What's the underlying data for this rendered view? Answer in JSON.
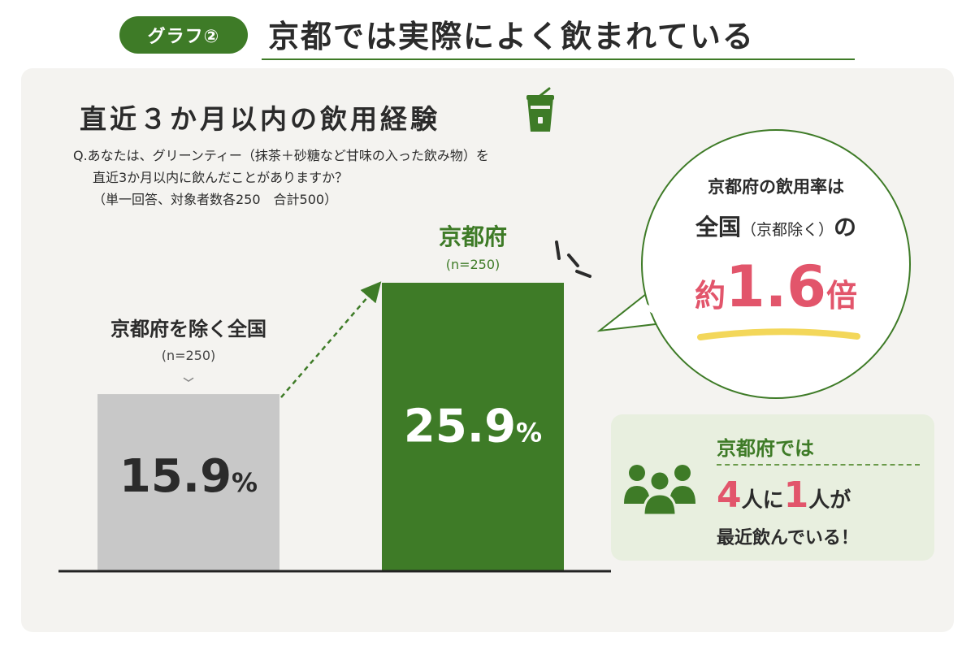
{
  "header": {
    "badge": "グラフ②",
    "title": "京都では実際によく飲まれている"
  },
  "chart_section": {
    "title": "直近３か月以内の飲用経験",
    "question_line1": "Q.あなたは、グリーンティー（抹茶＋砂糖など甘味の入った飲み物）を",
    "question_line2": "直近3か月以内に飲んだことがありますか？",
    "question_line3": "（単一回答、対象者数各250　合計500）",
    "icon": "drink-cup-icon"
  },
  "chart_data": {
    "type": "bar",
    "categories": [
      "京都府を除く全国",
      "京都府"
    ],
    "sample_sizes": [
      "(n=250)",
      "(n=250)"
    ],
    "values": [
      15.9,
      25.9
    ],
    "value_labels": [
      "15.9%",
      "25.9%"
    ],
    "unit": "%",
    "ylim": [
      0,
      30
    ],
    "colors": [
      "#c8c8c8",
      "#3e7b27"
    ],
    "label_colors": [
      "#2b2b2b",
      "#3e7b27"
    ],
    "value_label_colors": [
      "#2b2b2b",
      "#ffffff"
    ],
    "title": "",
    "xlabel": "",
    "ylabel": ""
  },
  "callout": {
    "line1": "京都府の飲用率は",
    "line2_main": "全国",
    "line2_paren": "（京都除く）",
    "line2_end": "の",
    "prefix": "約",
    "ratio": "1.6",
    "suffix": "倍",
    "accent_color": "#e2556b"
  },
  "group_box": {
    "icon": "people-group-icon",
    "line1": "京都府では",
    "num1": "4",
    "word1": "人に",
    "num2": "1",
    "word2": "人が",
    "line3": "最近飲んでいる！"
  }
}
